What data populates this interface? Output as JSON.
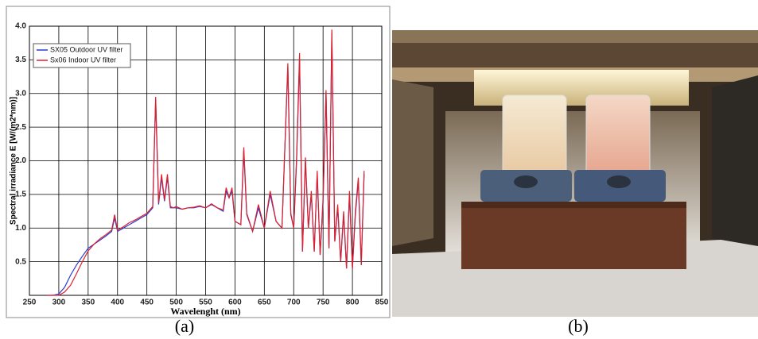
{
  "chart_data": {
    "type": "line",
    "x_label": "Wavelenght (nm)",
    "y_label": "Spectral irradiance E [W/(m2*nm)]",
    "xlim": [
      250,
      850
    ],
    "xticks": [
      250,
      300,
      350,
      400,
      450,
      500,
      550,
      600,
      650,
      700,
      750,
      800,
      850
    ],
    "ylim": [
      0,
      4
    ],
    "yticks": [
      {
        "value": 0.5,
        "label": "0.5"
      },
      {
        "value": 1,
        "label": "1.0"
      },
      {
        "value": 1.5,
        "label": "1.5"
      },
      {
        "value": 2,
        "label": "2.0"
      },
      {
        "value": 2.5,
        "label": "2.5"
      },
      {
        "value": 3,
        "label": "3.0"
      },
      {
        "value": 3.5,
        "label": "3.5"
      },
      {
        "value": 4,
        "label": "4.0"
      }
    ],
    "grid": true,
    "legend": "upper left",
    "x": [
      280,
      290,
      300,
      310,
      320,
      330,
      340,
      350,
      360,
      370,
      380,
      390,
      395,
      400,
      410,
      420,
      430,
      440,
      450,
      460,
      465,
      470,
      475,
      480,
      485,
      490,
      495,
      500,
      510,
      520,
      530,
      540,
      550,
      560,
      570,
      580,
      585,
      590,
      595,
      600,
      610,
      615,
      620,
      630,
      640,
      650,
      660,
      670,
      680,
      690,
      695,
      700,
      705,
      710,
      715,
      720,
      725,
      730,
      735,
      740,
      745,
      750,
      755,
      760,
      765,
      770,
      775,
      780,
      785,
      790,
      795,
      800,
      805,
      810,
      815,
      820
    ],
    "series": [
      {
        "name": "SX05 Outdoor UV filter",
        "color": "#2b3bd6",
        "values": [
          0,
          0,
          0.02,
          0.12,
          0.3,
          0.45,
          0.58,
          0.7,
          0.76,
          0.82,
          0.88,
          0.95,
          1.15,
          0.95,
          1.0,
          1.05,
          1.1,
          1.15,
          1.2,
          1.3,
          2.9,
          1.35,
          1.75,
          1.4,
          1.75,
          1.3,
          1.3,
          1.3,
          1.28,
          1.3,
          1.3,
          1.32,
          1.3,
          1.35,
          1.3,
          1.25,
          1.55,
          1.45,
          1.55,
          1.1,
          1.05,
          2.15,
          1.2,
          0.95,
          1.3,
          1.0,
          1.5,
          1.1,
          1.0,
          3.4,
          1.2,
          1.0,
          2.0,
          3.5,
          0.65,
          2.0,
          1.0,
          1.5,
          0.65,
          1.8,
          0.6,
          1.4,
          3.0,
          0.7,
          3.9,
          0.8,
          1.3,
          0.5,
          1.2,
          0.4,
          1.5,
          0.4,
          1.2,
          1.7,
          0.45,
          1.8
        ]
      },
      {
        "name": "Sx06 Indoor UV filter",
        "color": "#e0202a",
        "values": [
          0,
          0,
          0,
          0.05,
          0.15,
          0.32,
          0.5,
          0.66,
          0.76,
          0.84,
          0.9,
          0.97,
          1.2,
          0.97,
          1.02,
          1.08,
          1.12,
          1.17,
          1.22,
          1.32,
          2.95,
          1.38,
          1.8,
          1.42,
          1.8,
          1.32,
          1.3,
          1.32,
          1.28,
          1.3,
          1.31,
          1.33,
          1.3,
          1.36,
          1.3,
          1.27,
          1.6,
          1.45,
          1.6,
          1.1,
          1.05,
          2.2,
          1.22,
          0.95,
          1.35,
          1.0,
          1.55,
          1.1,
          1.0,
          3.45,
          1.22,
          1.0,
          2.05,
          3.6,
          0.65,
          2.05,
          1.0,
          1.55,
          0.65,
          1.85,
          0.6,
          1.45,
          3.05,
          0.7,
          3.95,
          0.8,
          1.35,
          0.5,
          1.25,
          0.4,
          1.55,
          0.4,
          1.25,
          1.75,
          0.45,
          1.85
        ]
      }
    ],
    "captions": [
      "(a)",
      "(b)"
    ]
  }
}
